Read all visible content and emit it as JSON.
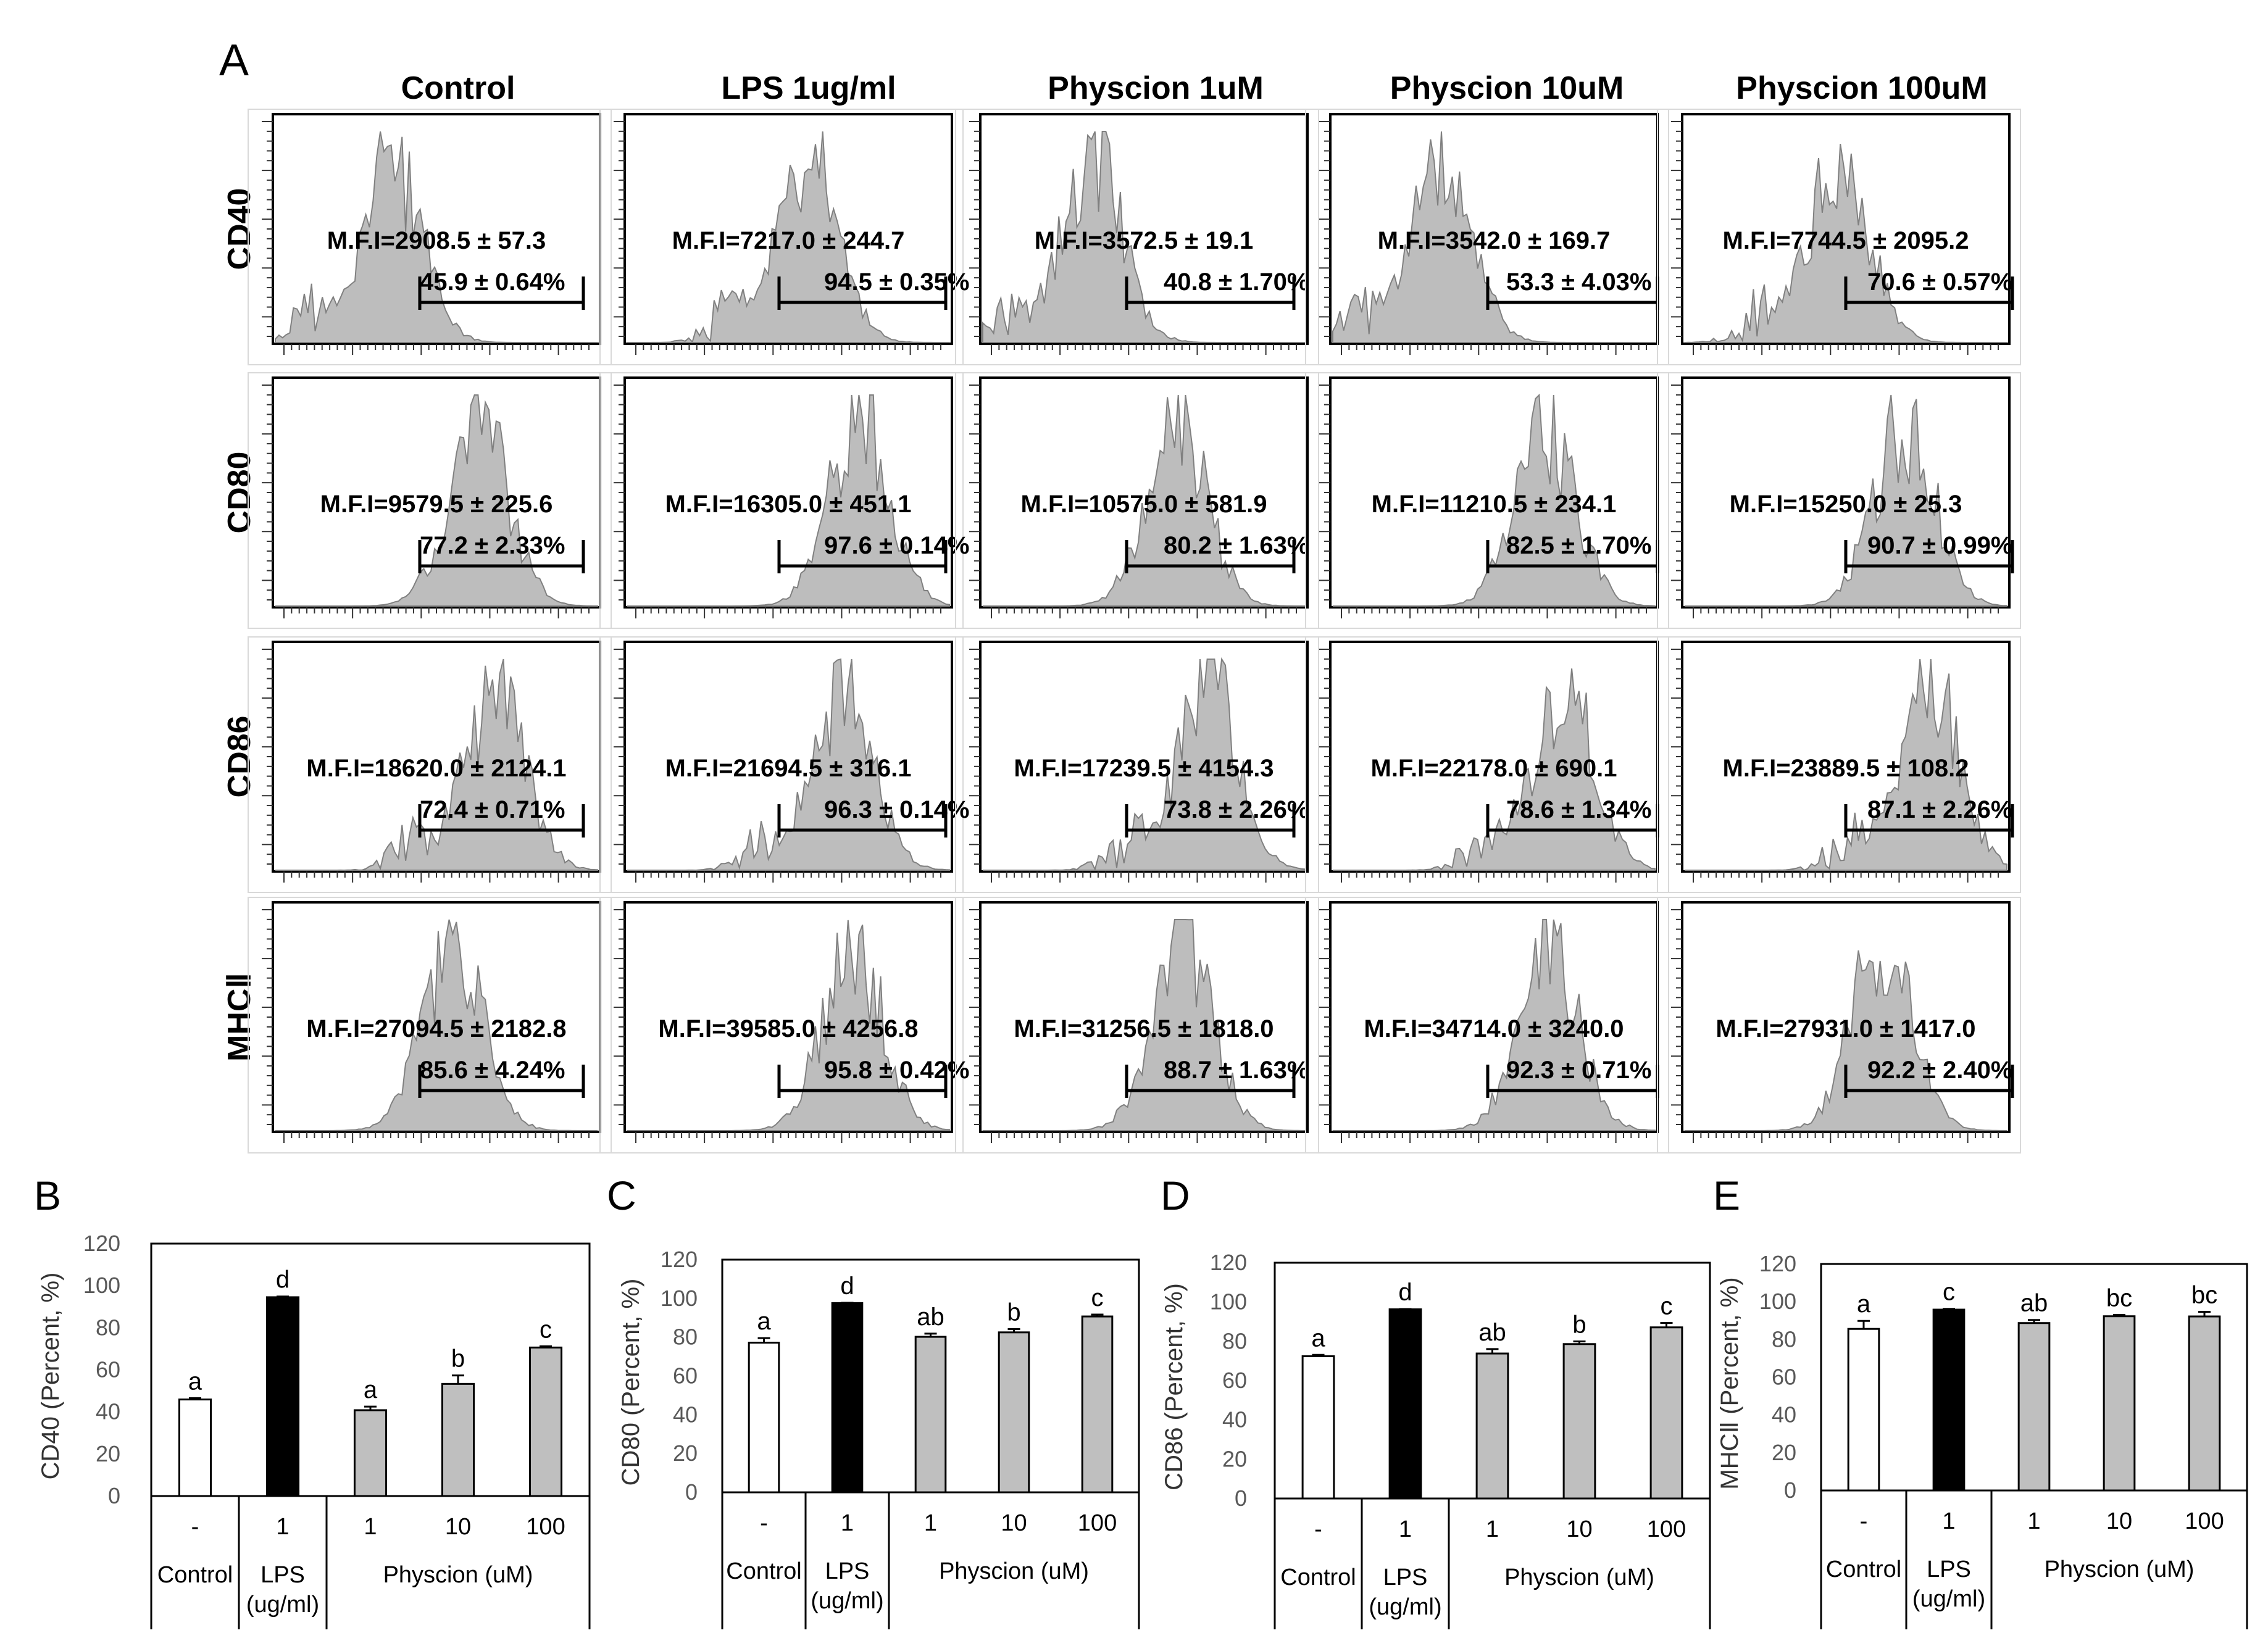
{
  "panel_letters": {
    "A": "A",
    "B": "B",
    "C": "C",
    "D": "D",
    "E": "E"
  },
  "columns": [
    "Control",
    "LPS 1ug/ml",
    "Physcion 1uM",
    "Physcion 10uM",
    "Physcion 100uM"
  ],
  "rows": [
    "CD40",
    "CD80",
    "CD86",
    "MHCⅡ"
  ],
  "histograms": [
    [
      {
        "mfi": "M.F.I=2908.5 ± 57.3",
        "pct": "45.9 ± 0.64%"
      },
      {
        "mfi": "M.F.I=7217.0 ± 244.7",
        "pct": "94.5 ± 0.35%"
      },
      {
        "mfi": "M.F.I=3572.5 ± 19.1",
        "pct": "40.8 ± 1.70%"
      },
      {
        "mfi": "M.F.I=3542.0 ± 169.7",
        "pct": "53.3 ± 4.03%"
      },
      {
        "mfi": "M.F.I=7744.5 ± 2095.2",
        "pct": "70.6 ± 0.57%"
      }
    ],
    [
      {
        "mfi": "M.F.I=9579.5 ± 225.6",
        "pct": "77.2 ± 2.33%"
      },
      {
        "mfi": "M.F.I=16305.0 ± 451.1",
        "pct": "97.6 ± 0.14%"
      },
      {
        "mfi": "M.F.I=10575.0 ± 581.9",
        "pct": "80.2 ± 1.63%"
      },
      {
        "mfi": "M.F.I=11210.5 ± 234.1",
        "pct": "82.5 ± 1.70%"
      },
      {
        "mfi": "M.F.I=15250.0 ± 25.3",
        "pct": "90.7 ± 0.99%"
      }
    ],
    [
      {
        "mfi": "M.F.I=18620.0 ± 2124.1",
        "pct": "72.4 ± 0.71%"
      },
      {
        "mfi": "M.F.I=21694.5 ± 316.1",
        "pct": "96.3 ± 0.14%"
      },
      {
        "mfi": "M.F.I=17239.5 ± 4154.3",
        "pct": "73.8 ± 2.26%"
      },
      {
        "mfi": "M.F.I=22178.0 ± 690.1",
        "pct": "78.6 ± 1.34%"
      },
      {
        "mfi": "M.F.I=23889.5 ± 108.2",
        "pct": "87.1 ± 2.26%"
      }
    ],
    [
      {
        "mfi": "M.F.I=27094.5 ± 2182.8",
        "pct": "85.6 ± 4.24%"
      },
      {
        "mfi": "M.F.I=39585.0 ± 4256.8",
        "pct": "95.8 ± 0.42%"
      },
      {
        "mfi": "M.F.I=31256.5 ± 1818.0",
        "pct": "88.7 ± 1.63%"
      },
      {
        "mfi": "M.F.I=34714.0 ± 3240.0",
        "pct": "92.3 ± 0.71%"
      },
      {
        "mfi": "M.F.I=27931.0 ± 1417.0",
        "pct": "92.2 ± 2.40%"
      }
    ]
  ],
  "colors": {
    "control": "#ffffff",
    "lps": "#000000",
    "physcion": "#bfbfbf",
    "hist_fill": "#bdbdbd",
    "hist_stroke": "#808080"
  },
  "chart_data": [
    {
      "type": "bar",
      "panel": "B",
      "ylabel": "CD40 (Percent, %)",
      "ylim": [
        0,
        120
      ],
      "yticks": [
        0,
        20,
        40,
        60,
        80,
        100,
        120
      ],
      "categories": [
        "-",
        "1",
        "1",
        "10",
        "100"
      ],
      "group_labels": [
        "Control",
        "LPS\n(ug/ml)",
        "Physcion (uM)"
      ],
      "values": [
        45.9,
        94.5,
        40.8,
        53.3,
        70.6
      ],
      "errors": [
        0.64,
        0.35,
        1.7,
        4.03,
        0.57
      ],
      "letters": [
        "a",
        "d",
        "a",
        "b",
        "c"
      ]
    },
    {
      "type": "bar",
      "panel": "C",
      "ylabel": "CD80 (Percent, %)",
      "ylim": [
        0,
        120
      ],
      "yticks": [
        0,
        20,
        40,
        60,
        80,
        100,
        120
      ],
      "categories": [
        "-",
        "1",
        "1",
        "10",
        "100"
      ],
      "group_labels": [
        "Control",
        "LPS\n(ug/ml)",
        "Physcion (uM)"
      ],
      "values": [
        77.2,
        97.6,
        80.2,
        82.5,
        90.7
      ],
      "errors": [
        2.33,
        0.14,
        1.63,
        1.7,
        0.99
      ],
      "letters": [
        "a",
        "d",
        "ab",
        "b",
        "c"
      ]
    },
    {
      "type": "bar",
      "panel": "D",
      "ylabel": "CD86 (Percent, %)",
      "ylim": [
        0,
        120
      ],
      "yticks": [
        0,
        20,
        40,
        60,
        80,
        100,
        120
      ],
      "categories": [
        "-",
        "1",
        "1",
        "10",
        "100"
      ],
      "group_labels": [
        "Control",
        "LPS\n(ug/ml)",
        "Physcion (uM)"
      ],
      "values": [
        72.4,
        96.3,
        73.8,
        78.6,
        87.1
      ],
      "errors": [
        0.71,
        0.14,
        2.26,
        1.34,
        2.26
      ],
      "letters": [
        "a",
        "d",
        "ab",
        "b",
        "c"
      ]
    },
    {
      "type": "bar",
      "panel": "E",
      "ylabel": "MHCⅡ (Percent, %)",
      "ylim": [
        0,
        120
      ],
      "yticks": [
        0,
        20,
        40,
        60,
        80,
        100,
        120
      ],
      "categories": [
        "-",
        "1",
        "1",
        "10",
        "100"
      ],
      "group_labels": [
        "Control",
        "LPS\n(ug/ml)",
        "Physcion (uM)"
      ],
      "values": [
        85.6,
        95.8,
        88.7,
        92.3,
        92.2
      ],
      "errors": [
        4.24,
        0.42,
        1.63,
        0.71,
        2.4
      ],
      "letters": [
        "a",
        "c",
        "ab",
        "bc",
        "bc"
      ]
    }
  ]
}
